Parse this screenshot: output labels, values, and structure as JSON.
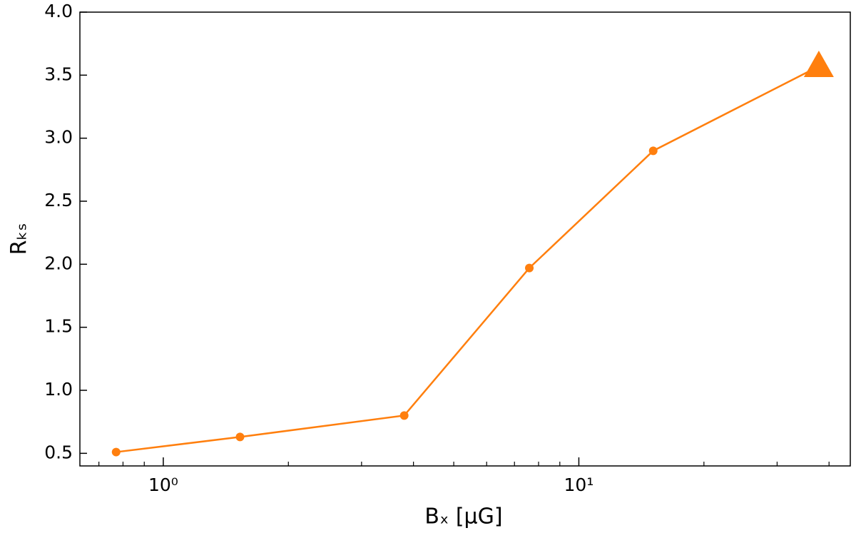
{
  "chart_data": {
    "type": "line",
    "xlabel": "Bₓ [μG]",
    "ylabel": "Rₖₛ",
    "x": [
      0.77,
      1.53,
      3.8,
      7.6,
      15.1,
      37.8
    ],
    "series": [
      {
        "color": "#ff7f0e",
        "values": [
          0.51,
          0.63,
          0.8,
          1.97,
          2.9,
          3.57
        ],
        "markers": [
          "circle",
          "circle",
          "circle",
          "circle",
          "circle",
          "triangle"
        ]
      }
    ],
    "xscale": "log",
    "xlim": [
      0.63,
      45
    ],
    "xticks": [
      {
        "value": 1,
        "label": "10⁰"
      },
      {
        "value": 10,
        "label": "10¹"
      }
    ],
    "xminor": [
      0.7,
      0.8,
      0.9,
      2,
      3,
      4,
      5,
      6,
      7,
      8,
      9,
      20,
      30,
      40
    ],
    "ylim": [
      0.4,
      4.0
    ],
    "yticks": [
      0.5,
      {
        "value": 1,
        "label": "1.0"
      },
      1.5,
      {
        "value": 2,
        "label": "2.0"
      },
      2.5,
      {
        "value": 3,
        "label": "3.0"
      },
      3.5,
      {
        "value": 4,
        "label": "4.0"
      }
    ],
    "grid": false
  }
}
